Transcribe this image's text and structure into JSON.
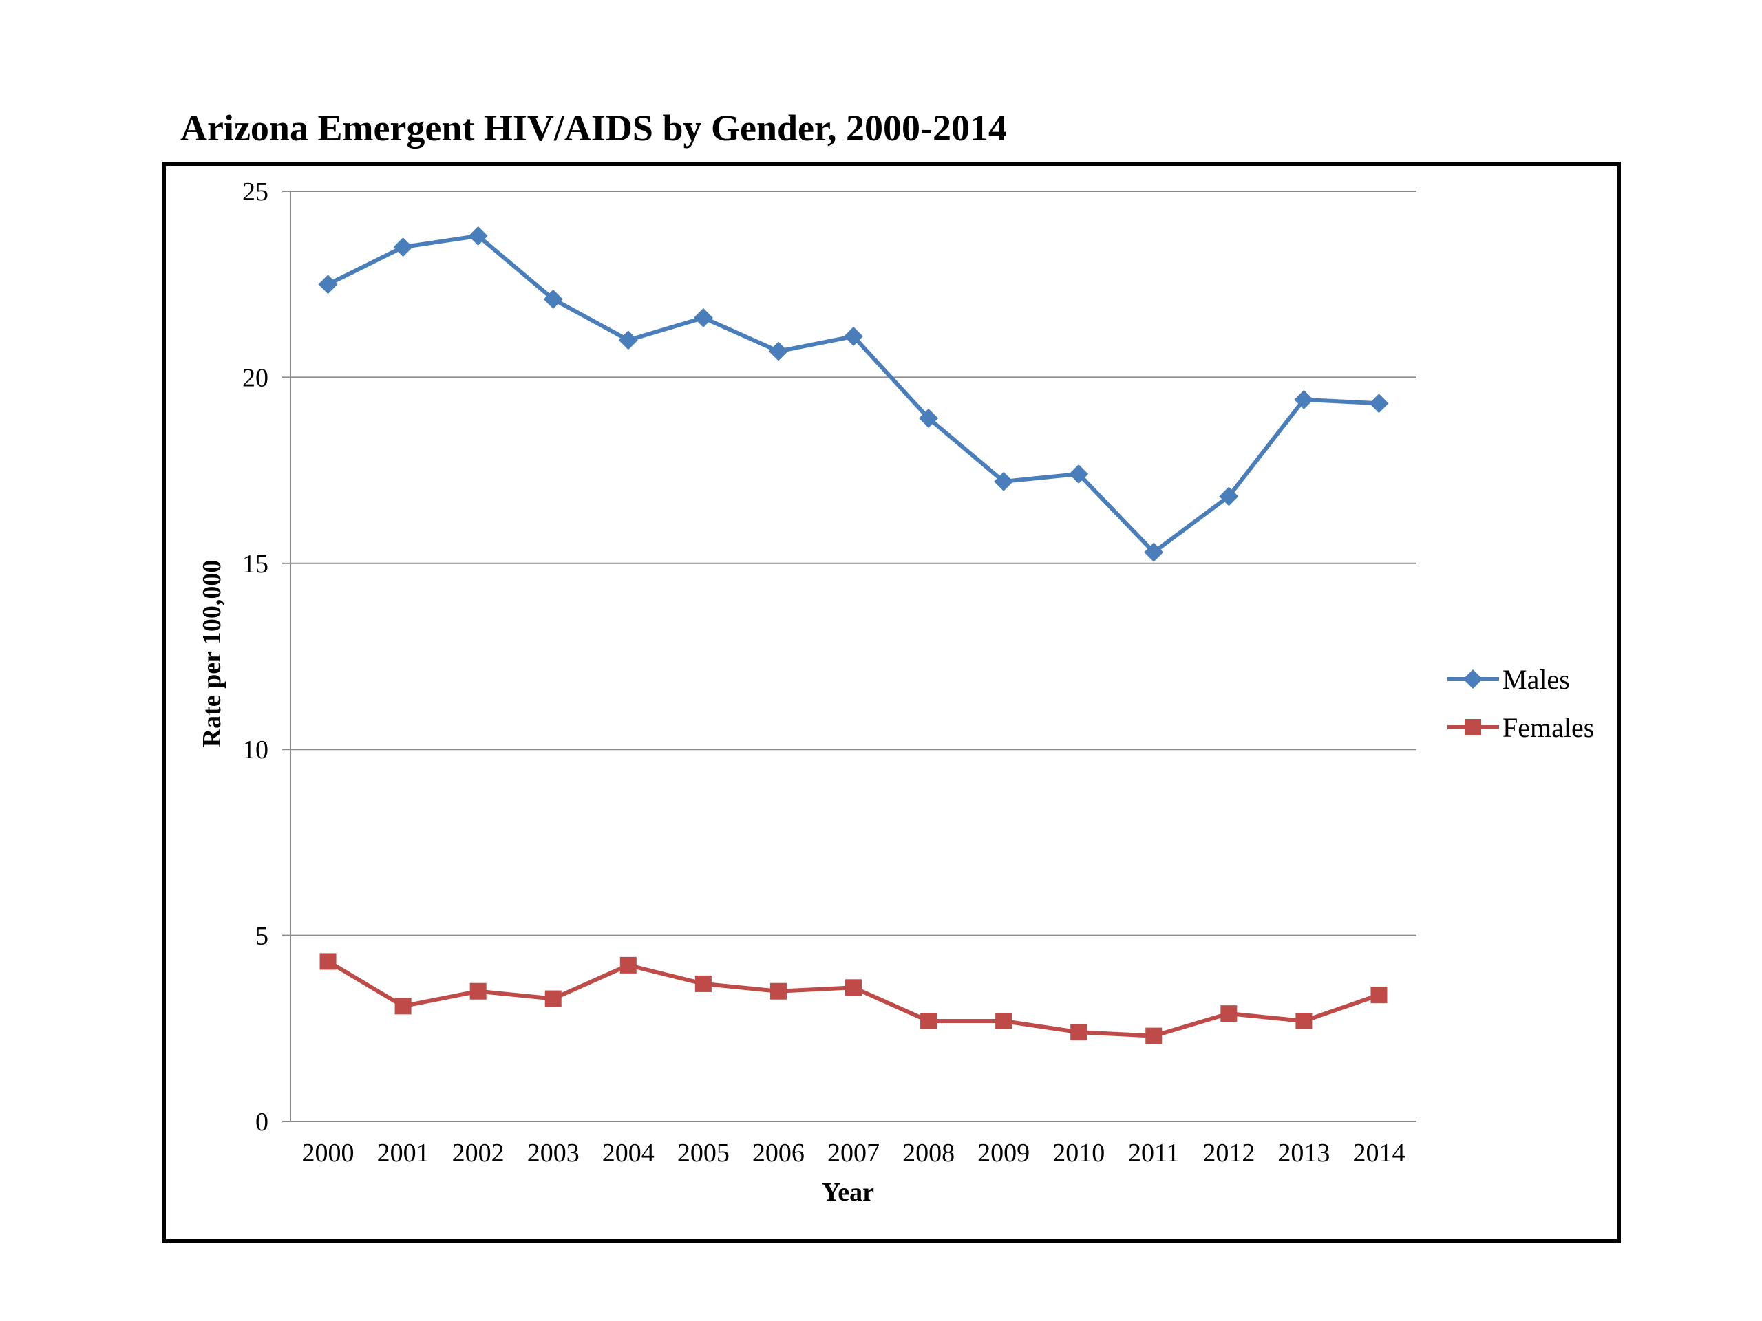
{
  "chart_data": {
    "type": "line",
    "title": "Arizona Emergent HIV/AIDS by Gender, 2000-2014",
    "xlabel": "Year",
    "ylabel": "Rate per 100,000",
    "ylim": [
      0,
      25
    ],
    "yticks": [
      0,
      5,
      10,
      15,
      20,
      25
    ],
    "grid": "horizontal",
    "legend_position": "right",
    "categories": [
      "2000",
      "2001",
      "2002",
      "2003",
      "2004",
      "2005",
      "2006",
      "2007",
      "2008",
      "2009",
      "2010",
      "2011",
      "2012",
      "2013",
      "2014"
    ],
    "series": [
      {
        "name": "Males",
        "color": "#4a7ebb",
        "marker": "diamond",
        "values": [
          22.5,
          23.5,
          23.8,
          22.1,
          21.0,
          21.6,
          20.7,
          21.1,
          18.9,
          17.2,
          17.4,
          15.3,
          16.8,
          19.4,
          19.3
        ]
      },
      {
        "name": "Females",
        "color": "#be4b48",
        "marker": "square",
        "values": [
          4.3,
          3.1,
          3.5,
          3.3,
          4.2,
          3.7,
          3.5,
          3.6,
          2.7,
          2.7,
          2.4,
          2.3,
          2.9,
          2.7,
          3.4
        ]
      }
    ]
  }
}
